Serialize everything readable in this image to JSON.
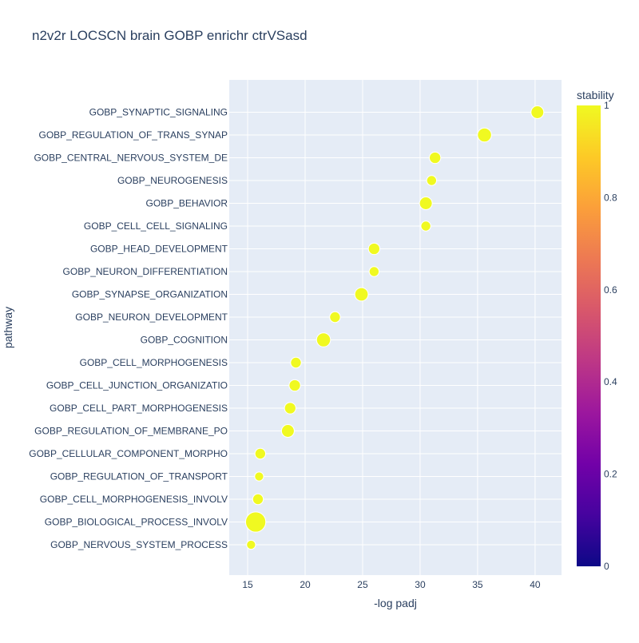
{
  "chart_data": {
    "type": "scatter",
    "title": "n2v2r LOCSCN brain GOBP enrichr ctrVSasd",
    "xlabel": "-log padj",
    "ylabel": "pathway",
    "xlim": [
      13.4,
      42.3
    ],
    "x_ticks": [
      15,
      20,
      25,
      30,
      35,
      40
    ],
    "grid": true,
    "legend_position": "right",
    "colorbar": {
      "title": "stability",
      "range": [
        0,
        1
      ],
      "ticks": [
        0,
        0.2,
        0.4,
        0.6,
        0.8,
        1
      ],
      "colors": [
        "#0d0887",
        "#46039f",
        "#7201a8",
        "#9c179e",
        "#bd3786",
        "#d8576b",
        "#ed7953",
        "#fb9f3a",
        "#fdca26",
        "#f0f921"
      ]
    },
    "marker_color": "#f0f921",
    "points": [
      {
        "pathway": "GOBP_SYNAPTIC_SIGNALING",
        "x": 40.2,
        "stability": 1.0,
        "size": 1.0
      },
      {
        "pathway": "GOBP_REGULATION_OF_TRANS_SYNAP",
        "x": 35.6,
        "stability": 1.0,
        "size": 1.2
      },
      {
        "pathway": "GOBP_CENTRAL_NERVOUS_SYSTEM_DE",
        "x": 31.3,
        "stability": 1.0,
        "size": 0.8
      },
      {
        "pathway": "GOBP_NEUROGENESIS",
        "x": 31.0,
        "stability": 1.0,
        "size": 0.6
      },
      {
        "pathway": "GOBP_BEHAVIOR",
        "x": 30.5,
        "stability": 1.0,
        "size": 1.0
      },
      {
        "pathway": "GOBP_CELL_CELL_SIGNALING",
        "x": 30.5,
        "stability": 1.0,
        "size": 0.6
      },
      {
        "pathway": "GOBP_HEAD_DEVELOPMENT",
        "x": 26.0,
        "stability": 1.0,
        "size": 0.8
      },
      {
        "pathway": "GOBP_NEURON_DIFFERENTIATION",
        "x": 26.0,
        "stability": 1.0,
        "size": 0.6
      },
      {
        "pathway": "GOBP_SYNAPSE_ORGANIZATION",
        "x": 24.9,
        "stability": 1.0,
        "size": 1.1
      },
      {
        "pathway": "GOBP_NEURON_DEVELOPMENT",
        "x": 22.6,
        "stability": 1.0,
        "size": 0.7
      },
      {
        "pathway": "GOBP_COGNITION",
        "x": 21.6,
        "stability": 1.0,
        "size": 1.2
      },
      {
        "pathway": "GOBP_CELL_MORPHOGENESIS",
        "x": 19.2,
        "stability": 1.0,
        "size": 0.7
      },
      {
        "pathway": "GOBP_CELL_JUNCTION_ORGANIZATIO",
        "x": 19.1,
        "stability": 1.0,
        "size": 0.8
      },
      {
        "pathway": "GOBP_CELL_PART_MORPHOGENESIS",
        "x": 18.7,
        "stability": 1.0,
        "size": 0.8
      },
      {
        "pathway": "GOBP_REGULATION_OF_MEMBRANE_PO",
        "x": 18.5,
        "stability": 1.0,
        "size": 1.0
      },
      {
        "pathway": "GOBP_CELLULAR_COMPONENT_MORPHO",
        "x": 16.1,
        "stability": 1.0,
        "size": 0.7
      },
      {
        "pathway": "GOBP_REGULATION_OF_TRANSPORT",
        "x": 16.0,
        "stability": 1.0,
        "size": 0.5
      },
      {
        "pathway": "GOBP_CELL_MORPHOGENESIS_INVOLV",
        "x": 15.9,
        "stability": 1.0,
        "size": 0.7
      },
      {
        "pathway": "GOBP_BIOLOGICAL_PROCESS_INVOLV",
        "x": 15.7,
        "stability": 1.0,
        "size": 2.5
      },
      {
        "pathway": "GOBP_NERVOUS_SYSTEM_PROCESS",
        "x": 15.3,
        "stability": 1.0,
        "size": 0.5
      }
    ]
  }
}
